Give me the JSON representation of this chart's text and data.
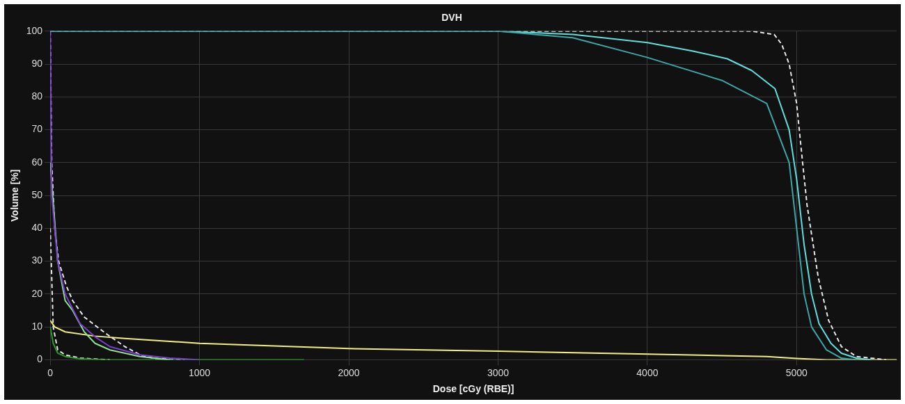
{
  "chart_data": {
    "type": "line",
    "title": "DVH",
    "xlabel": "Dose [cGy (RBE)]",
    "ylabel": "Volume [%]",
    "xlim": [
      0,
      5670
    ],
    "xticks": [
      0,
      1000,
      2000,
      3000,
      4000,
      5000
    ],
    "ylim": [
      0,
      100
    ],
    "yticks": [
      0,
      10,
      20,
      30,
      40,
      50,
      60,
      70,
      80,
      90,
      100
    ],
    "grid": true,
    "legend": false,
    "marker": "none",
    "series": [
      {
        "color": "#3aa8a6",
        "x": [
          0,
          3000,
          3500,
          4000,
          4500,
          4800,
          4950,
          5000,
          5050,
          5100,
          5200,
          5300,
          5400
        ],
        "values": [
          100,
          100,
          98,
          92,
          85,
          78,
          60,
          40,
          20,
          10,
          3,
          0.5,
          0
        ]
      },
      {
        "color": "#5ee0dc",
        "x": [
          0,
          3000,
          3500,
          4000,
          4300,
          4535,
          4700,
          4855,
          4950,
          5000,
          5050,
          5100,
          5150,
          5230,
          5300,
          5400,
          5500
        ],
        "values": [
          100,
          100,
          99,
          96.5,
          94,
          91.6,
          88,
          82.5,
          70,
          55,
          35,
          20,
          11,
          5,
          2,
          0.5,
          0
        ]
      },
      {
        "color": "#e8e8e8",
        "line_style": "dashed",
        "x": [
          0,
          4700,
          4850,
          4900,
          4950,
          5000,
          5040,
          5070,
          5145,
          5214,
          5300,
          5400,
          5600
        ],
        "values": [
          100,
          100,
          99,
          96,
          90,
          78,
          60,
          47,
          25,
          12,
          4,
          1,
          0
        ]
      },
      {
        "color": "#7a3fd0",
        "x": [
          0,
          10,
          50,
          100,
          200,
          300,
          400,
          600,
          800,
          1000
        ],
        "values": [
          100,
          50,
          30,
          20,
          11,
          7,
          4,
          1.5,
          0.5,
          0
        ]
      },
      {
        "color": "#90e090",
        "x": [
          0,
          50,
          100,
          150,
          228,
          300,
          400,
          600,
          800
        ],
        "values": [
          60,
          30,
          18,
          15,
          8.5,
          5,
          3,
          1,
          0
        ]
      },
      {
        "color": "#2a9a2a",
        "x": [
          0,
          20,
          50,
          100,
          200,
          400,
          1700
        ],
        "values": [
          10,
          5,
          2,
          1,
          0.3,
          0,
          0
        ]
      },
      {
        "color": "#e8e8e8",
        "line_style": "dashed",
        "x": [
          0,
          10,
          30,
          56,
          107,
          150,
          228,
          300,
          382,
          500,
          610,
          700,
          900
        ],
        "values": [
          100,
          60,
          40,
          30,
          22.6,
          18,
          13,
          10.5,
          7.7,
          4,
          1.3,
          0.4,
          0
        ]
      },
      {
        "color": "#e8e8e8",
        "line_style": "dashed",
        "x": [
          0,
          20,
          50,
          100,
          200,
          400
        ],
        "values": [
          40,
          10,
          3,
          1.5,
          0.5,
          0
        ]
      },
      {
        "color": "#f0f080",
        "x": [
          0,
          30,
          100,
          300,
          500,
          1000,
          1500,
          2000,
          3000,
          4000,
          4800,
          5000,
          5200,
          5670
        ],
        "values": [
          12,
          10,
          8.5,
          7.2,
          6.5,
          5,
          4.2,
          3.4,
          2.6,
          1.7,
          1,
          0.4,
          0,
          0
        ]
      }
    ]
  }
}
